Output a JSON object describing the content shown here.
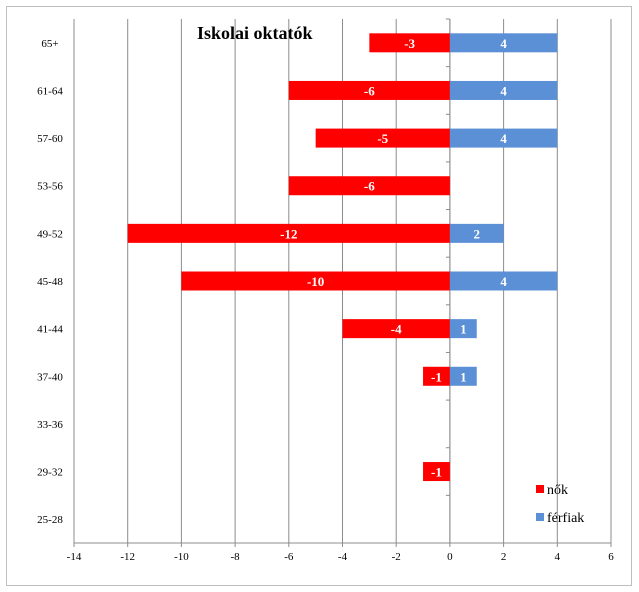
{
  "chart_data": {
    "type": "bar",
    "orientation": "horizontal",
    "stacking": "diverging",
    "title": "Iskolai oktatók",
    "categories": [
      "65+",
      "61-64",
      "57-60",
      "53-56",
      "49-52",
      "45-48",
      "41-44",
      "37-40",
      "33-36",
      "29-32",
      "25-28"
    ],
    "series": [
      {
        "name": "nők",
        "color": "#ff0000",
        "values": [
          -3,
          -6,
          -5,
          -6,
          -12,
          -10,
          -4,
          -1,
          null,
          -1,
          null
        ]
      },
      {
        "name": "férfiak",
        "color": "#5b8fd6",
        "values": [
          4,
          4,
          4,
          null,
          2,
          4,
          1,
          1,
          null,
          null,
          null
        ]
      }
    ],
    "xlim": [
      -14,
      6
    ],
    "xticks": [
      "-14",
      "-12",
      "-10",
      "-8",
      "-6",
      "-4",
      "-2",
      "0",
      "2",
      "4",
      "6"
    ],
    "grid": true,
    "legend_position": "bottom-right"
  }
}
